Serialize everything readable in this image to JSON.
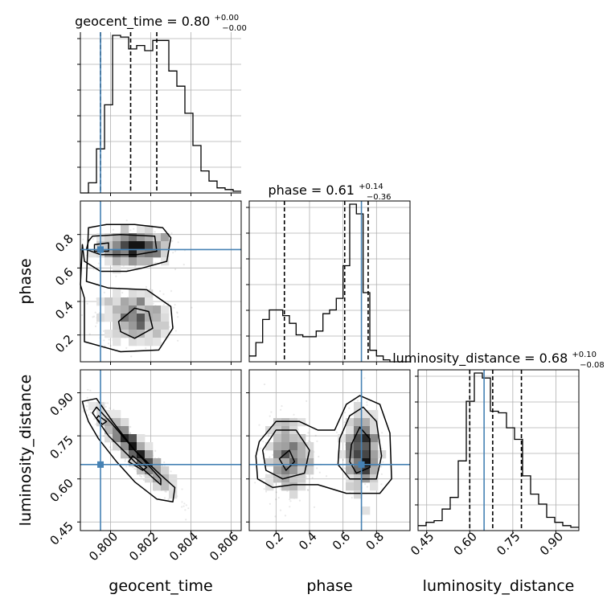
{
  "colors": {
    "truth": "#4682b4",
    "hist": "#000000",
    "grid": "#b0b0b0",
    "points": "#000000"
  },
  "titles": [
    {
      "param": "geocent_time",
      "value": "0.80",
      "plus": "+0.00",
      "minus": "−0.00"
    },
    {
      "param": "phase",
      "value": "0.61",
      "plus": "+0.14",
      "minus": "−0.36"
    },
    {
      "param": "luminosity_distance",
      "value": "0.68",
      "plus": "+0.10",
      "minus": "−0.08"
    }
  ],
  "axis_labels": {
    "x": [
      "geocent_time",
      "phase",
      "luminosity_distance"
    ],
    "y_phase": "phase",
    "y_luminosity_distance": "luminosity_distance"
  },
  "chart_data": {
    "type": "corner",
    "parameters": [
      "geocent_time",
      "phase",
      "luminosity_distance"
    ],
    "ranges": {
      "geocent_time": [
        0.7985,
        0.8065
      ],
      "phase": [
        0.04,
        1.0
      ],
      "luminosity_distance": [
        0.42,
        0.98
      ]
    },
    "ticks": {
      "geocent_time": [
        "0.800",
        "0.802",
        "0.804",
        "0.806"
      ],
      "phase": [
        "0.2",
        "0.4",
        "0.6",
        "0.8"
      ],
      "luminosity_distance": [
        "0.45",
        "0.60",
        "0.75",
        "0.90"
      ]
    },
    "injection": {
      "geocent_time": 0.7995,
      "phase": 0.71,
      "luminosity_distance": 0.65
    },
    "quantiles": {
      "geocent_time": [
        0.7995,
        0.801,
        0.8023
      ],
      "phase": [
        0.25,
        0.61,
        0.75
      ],
      "luminosity_distance": [
        0.6,
        0.68,
        0.78
      ]
    },
    "histograms": {
      "geocent_time": {
        "bin_width": 0.0004,
        "start": 0.7985,
        "counts": [
          0,
          0.06,
          0.26,
          0.52,
          0.93,
          0.92,
          0.85,
          0.87,
          0.84,
          0.9,
          0.9,
          0.72,
          0.63,
          0.47,
          0.28,
          0.13,
          0.07,
          0.03,
          0.02,
          0.01
        ]
      },
      "phase": {
        "bin_width": 0.04,
        "start": 0.04,
        "counts": [
          0.03,
          0.1,
          0.22,
          0.27,
          0.27,
          0.24,
          0.2,
          0.14,
          0.13,
          0.13,
          0.16,
          0.25,
          0.27,
          0.33,
          0.5,
          0.82,
          0.77,
          0.36,
          0.06,
          0.03,
          0.01,
          0.0,
          0.0,
          0.0
        ]
      },
      "luminosity_distance": {
        "bin_width": 0.028,
        "start": 0.42,
        "counts": [
          0.03,
          0.05,
          0.06,
          0.13,
          0.2,
          0.42,
          0.78,
          0.95,
          0.92,
          0.72,
          0.71,
          0.62,
          0.55,
          0.33,
          0.22,
          0.16,
          0.08,
          0.05,
          0.03,
          0.02
        ]
      }
    },
    "grid": true
  }
}
